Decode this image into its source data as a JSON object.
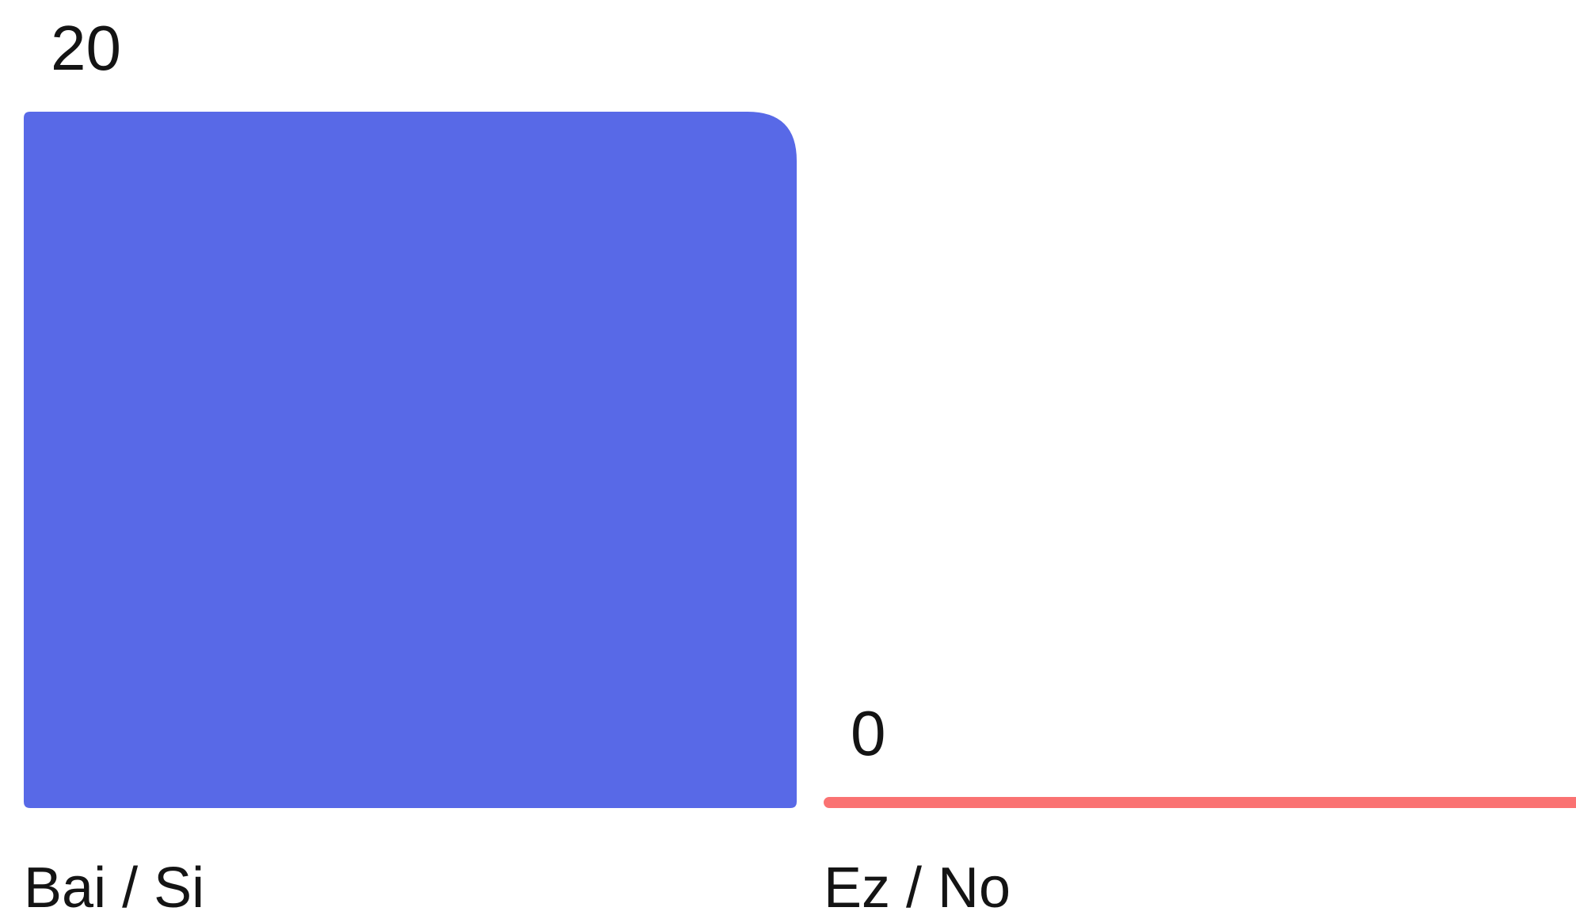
{
  "chart_data": {
    "type": "bar",
    "title": "",
    "xlabel": "",
    "ylabel": "",
    "categories": [
      "Bai / Si",
      "Ez / No"
    ],
    "values": [
      20,
      0
    ],
    "value_labels": [
      "20",
      "0"
    ],
    "colors": [
      "#5869E7",
      "#FA7272"
    ],
    "ylim": [
      0,
      20
    ],
    "grid": false,
    "legend": "none"
  }
}
